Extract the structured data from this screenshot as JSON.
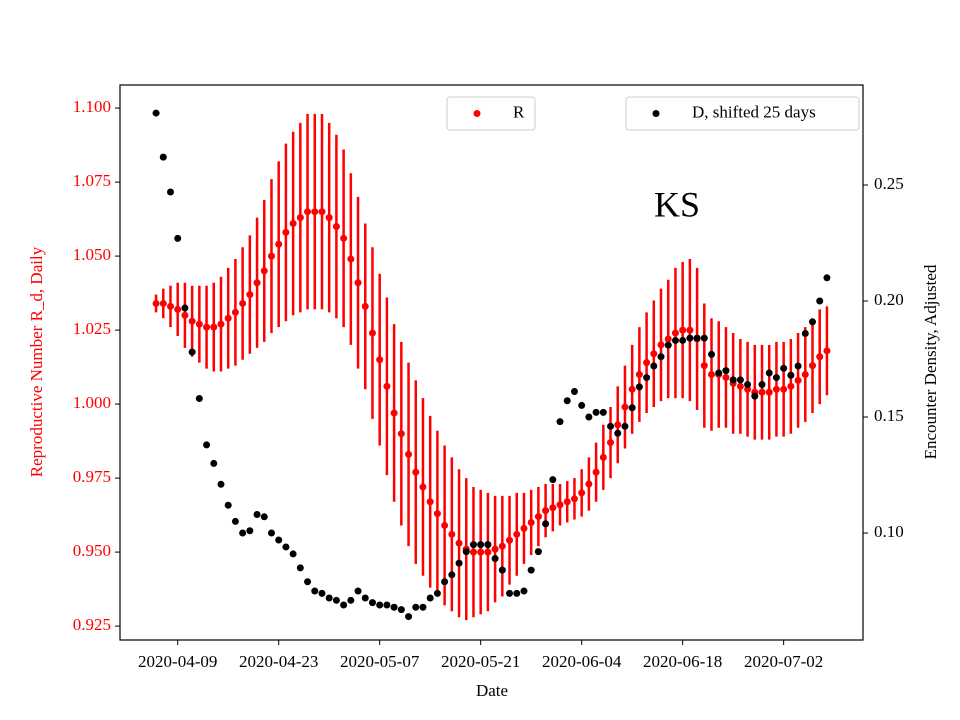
{
  "chart_data": {
    "type": "scatter",
    "annotation": "KS",
    "xlabel": "Date",
    "ylabel": "Reproductive Number R_d, Daily",
    "y2label": "Encounter Density, Adjusted",
    "x": [
      "2020-04-06",
      "2020-04-07",
      "2020-04-08",
      "2020-04-09",
      "2020-04-10",
      "2020-04-11",
      "2020-04-12",
      "2020-04-13",
      "2020-04-14",
      "2020-04-15",
      "2020-04-16",
      "2020-04-17",
      "2020-04-18",
      "2020-04-19",
      "2020-04-20",
      "2020-04-21",
      "2020-04-22",
      "2020-04-23",
      "2020-04-24",
      "2020-04-25",
      "2020-04-26",
      "2020-04-27",
      "2020-04-28",
      "2020-04-29",
      "2020-04-30",
      "2020-05-01",
      "2020-05-02",
      "2020-05-03",
      "2020-05-04",
      "2020-05-05",
      "2020-05-06",
      "2020-05-07",
      "2020-05-08",
      "2020-05-09",
      "2020-05-10",
      "2020-05-11",
      "2020-05-12",
      "2020-05-13",
      "2020-05-14",
      "2020-05-15",
      "2020-05-16",
      "2020-05-17",
      "2020-05-18",
      "2020-05-19",
      "2020-05-20",
      "2020-05-21",
      "2020-05-22",
      "2020-05-23",
      "2020-05-24",
      "2020-05-25",
      "2020-05-26",
      "2020-05-27",
      "2020-05-28",
      "2020-05-29",
      "2020-05-30",
      "2020-05-31",
      "2020-06-01",
      "2020-06-02",
      "2020-06-03",
      "2020-06-04",
      "2020-06-05",
      "2020-06-06",
      "2020-06-07",
      "2020-06-08",
      "2020-06-09",
      "2020-06-10",
      "2020-06-11",
      "2020-06-12",
      "2020-06-13",
      "2020-06-14",
      "2020-06-15",
      "2020-06-16",
      "2020-06-17",
      "2020-06-18",
      "2020-06-19",
      "2020-06-20",
      "2020-06-21",
      "2020-06-22",
      "2020-06-23",
      "2020-06-24",
      "2020-06-25",
      "2020-06-26",
      "2020-06-27",
      "2020-06-28",
      "2020-06-29",
      "2020-06-30",
      "2020-07-01",
      "2020-07-02",
      "2020-07-03",
      "2020-07-04",
      "2020-07-05",
      "2020-07-06",
      "2020-07-07",
      "2020-07-08"
    ],
    "series": [
      {
        "name": "R",
        "color": "#ff0000",
        "axis": "y",
        "values": [
          1.034,
          1.034,
          1.033,
          1.032,
          1.03,
          1.028,
          1.027,
          1.026,
          1.026,
          1.027,
          1.029,
          1.031,
          1.034,
          1.037,
          1.041,
          1.045,
          1.05,
          1.054,
          1.058,
          1.061,
          1.063,
          1.065,
          1.065,
          1.065,
          1.063,
          1.06,
          1.056,
          1.049,
          1.041,
          1.033,
          1.024,
          1.015,
          1.006,
          0.997,
          0.99,
          0.983,
          0.977,
          0.972,
          0.967,
          0.963,
          0.959,
          0.956,
          0.953,
          0.951,
          0.95,
          0.95,
          0.95,
          0.951,
          0.952,
          0.954,
          0.956,
          0.958,
          0.96,
          0.962,
          0.964,
          0.965,
          0.966,
          0.967,
          0.968,
          0.97,
          0.973,
          0.977,
          0.982,
          0.987,
          0.993,
          0.999,
          1.005,
          1.01,
          1.014,
          1.017,
          1.02,
          1.022,
          1.024,
          1.025,
          1.025,
          1.022,
          1.013,
          1.01,
          1.01,
          1.009,
          1.007,
          1.006,
          1.005,
          1.004,
          1.004,
          1.004,
          1.005,
          1.005,
          1.006,
          1.008,
          1.01,
          1.013,
          1.016,
          1.018
        ],
        "errors": [
          0.003,
          0.005,
          0.007,
          0.009,
          0.011,
          0.012,
          0.013,
          0.014,
          0.015,
          0.016,
          0.017,
          0.018,
          0.019,
          0.02,
          0.022,
          0.024,
          0.026,
          0.028,
          0.03,
          0.031,
          0.032,
          0.033,
          0.033,
          0.033,
          0.032,
          0.031,
          0.03,
          0.029,
          0.029,
          0.028,
          0.029,
          0.029,
          0.03,
          0.03,
          0.031,
          0.031,
          0.031,
          0.03,
          0.029,
          0.028,
          0.027,
          0.026,
          0.025,
          0.024,
          0.022,
          0.021,
          0.02,
          0.018,
          0.017,
          0.015,
          0.014,
          0.012,
          0.011,
          0.01,
          0.009,
          0.008,
          0.007,
          0.007,
          0.007,
          0.008,
          0.009,
          0.01,
          0.011,
          0.012,
          0.013,
          0.014,
          0.015,
          0.016,
          0.017,
          0.018,
          0.019,
          0.02,
          0.022,
          0.023,
          0.024,
          0.024,
          0.021,
          0.019,
          0.018,
          0.017,
          0.017,
          0.016,
          0.016,
          0.016,
          0.016,
          0.016,
          0.016,
          0.016,
          0.016,
          0.016,
          0.016,
          0.016,
          0.016,
          0.015
        ]
      },
      {
        "name": "D, shifted 25 days",
        "color": "#000000",
        "axis": "y2",
        "values": [
          0.281,
          0.262,
          0.247,
          0.227,
          0.197,
          0.178,
          0.158,
          0.138,
          0.13,
          0.121,
          0.112,
          0.105,
          0.1,
          0.101,
          0.108,
          0.107,
          0.1,
          0.097,
          0.094,
          0.091,
          0.085,
          0.079,
          0.075,
          0.074,
          0.072,
          0.071,
          0.069,
          0.071,
          0.075,
          0.072,
          0.07,
          0.069,
          0.069,
          0.068,
          0.067,
          0.064,
          0.068,
          0.068,
          0.072,
          0.074,
          0.079,
          0.082,
          0.087,
          0.092,
          0.095,
          0.095,
          0.095,
          0.089,
          0.084,
          0.074,
          0.074,
          0.075,
          0.084,
          0.092,
          0.104,
          0.123,
          0.148,
          0.157,
          0.161,
          0.155,
          0.15,
          0.152,
          0.152,
          0.146,
          0.143,
          0.146,
          0.154,
          0.163,
          0.167,
          0.172,
          0.176,
          0.181,
          0.183,
          0.183,
          0.184,
          0.184,
          0.184,
          0.177,
          0.169,
          0.17,
          0.166,
          0.166,
          0.164,
          0.159,
          0.164,
          0.169,
          0.167,
          0.171,
          0.168,
          0.172,
          0.186,
          0.191,
          0.2,
          0.21
        ]
      }
    ],
    "xlim": [
      "2020-04-01",
      "2020-07-13"
    ],
    "xticks": [
      "2020-04-09",
      "2020-04-23",
      "2020-05-07",
      "2020-05-21",
      "2020-06-04",
      "2020-06-18",
      "2020-07-02"
    ],
    "ylim": [
      0.9203,
      1.1078
    ],
    "yticks": [
      {
        "value": 0.925,
        "label": "0.925"
      },
      {
        "value": 0.95,
        "label": "0.950"
      },
      {
        "value": 0.975,
        "label": "0.975"
      },
      {
        "value": 1.0,
        "label": "1.000"
      },
      {
        "value": 1.025,
        "label": "1.025"
      },
      {
        "value": 1.05,
        "label": "1.050"
      },
      {
        "value": 1.075,
        "label": "1.075"
      },
      {
        "value": 1.1,
        "label": "1.100"
      }
    ],
    "y2lim": [
      0.0539,
      0.2931
    ],
    "y2ticks": [
      {
        "value": 0.1,
        "label": "0.10"
      },
      0.15,
      {
        "value": 0.2,
        "label": "0.20"
      },
      0.25
    ],
    "grid": false
  }
}
